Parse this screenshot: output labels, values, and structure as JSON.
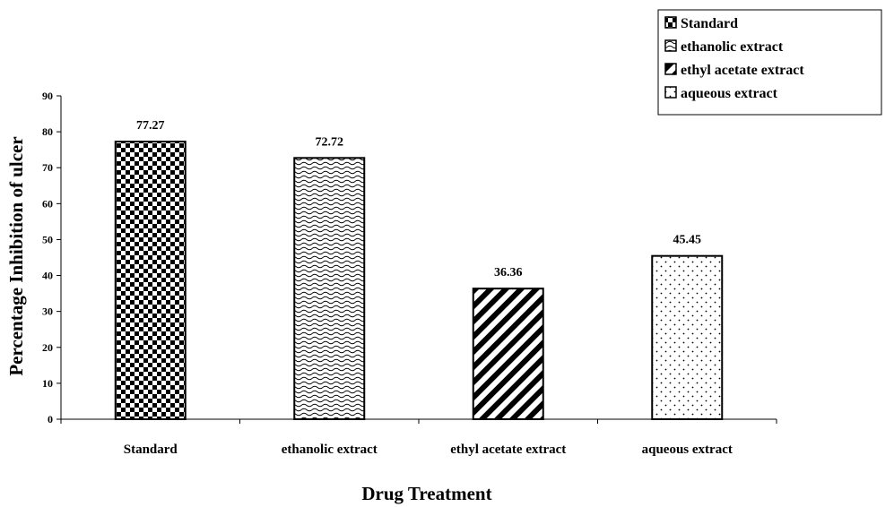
{
  "chart_data": {
    "type": "bar",
    "categories": [
      "Standard",
      "ethanolic extract",
      "ethyl acetate extract",
      "aqueous extract"
    ],
    "values": [
      77.27,
      72.72,
      36.36,
      45.45
    ],
    "data_labels": [
      "77.27",
      "72.72",
      "36.36",
      "45.45"
    ],
    "xlabel": "Drug Treatment",
    "ylabel": "Percentage Inhibition of ulcer",
    "ylim": [
      0,
      90
    ],
    "yticks": [
      0,
      10,
      20,
      30,
      40,
      50,
      60,
      70,
      80,
      90
    ],
    "grid": false,
    "legend": {
      "position": "top-right",
      "entries": [
        "Standard",
        "ethanolic extract",
        "ethyl acetate extract",
        "aqueous extract"
      ]
    },
    "patterns": [
      "checkerboard",
      "wave",
      "diagonal-stripes",
      "dots"
    ],
    "colors": {
      "bar_outline": "#000000",
      "pattern": "#000000",
      "background": "#ffffff"
    }
  }
}
